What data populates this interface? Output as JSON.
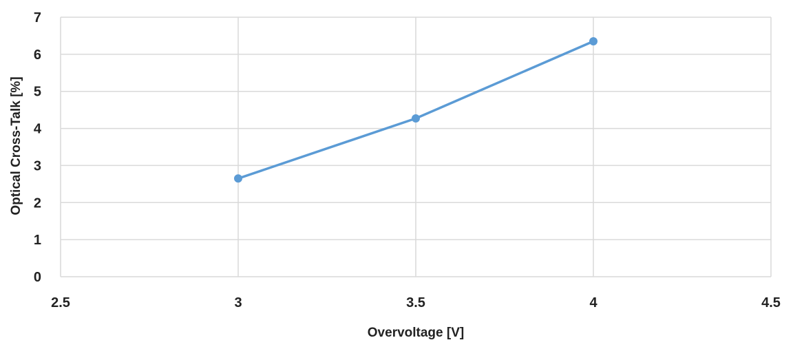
{
  "chart_data": {
    "type": "line",
    "title": "",
    "xlabel": "Overvoltage [V]",
    "ylabel": "Optical Cross-Talk [%]",
    "xlim": [
      2.5,
      4.5
    ],
    "ylim": [
      0,
      7
    ],
    "x_ticks": [
      "2.5",
      "3",
      "3.5",
      "4",
      "4.5"
    ],
    "y_ticks": [
      "0",
      "1",
      "2",
      "3",
      "4",
      "5",
      "6",
      "7"
    ],
    "grid": true,
    "legend": "none",
    "series": [
      {
        "color": "#5B9BD5",
        "x": [
          3,
          3.5,
          4
        ],
        "y": [
          2.65,
          4.27,
          6.35
        ]
      }
    ]
  }
}
